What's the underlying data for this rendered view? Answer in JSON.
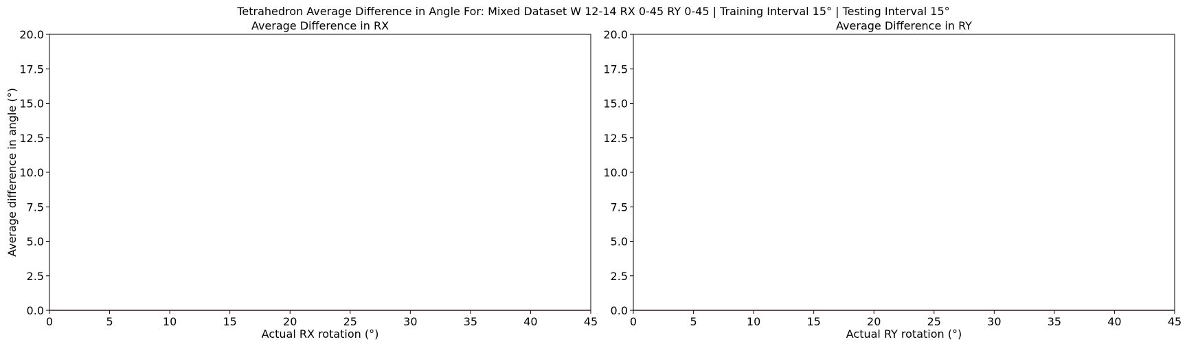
{
  "figure": {
    "suptitle": "Tetrahedron Average Difference in Angle For: Mixed Dataset W 12-14 RX 0-45 RY 0-45 | Training Interval 15° | Testing Interval 15°"
  },
  "chart_data": [
    {
      "type": "line",
      "title": "Average Difference in RX",
      "xlabel": "Actual RX rotation (°)",
      "ylabel": "Average difference in angle (°)",
      "xlim": [
        0,
        45
      ],
      "ylim": [
        0,
        20
      ],
      "xticks": [
        0,
        5,
        10,
        15,
        20,
        25,
        30,
        35,
        40,
        45
      ],
      "yticks": [
        0.0,
        2.5,
        5.0,
        7.5,
        10.0,
        12.5,
        15.0,
        17.5,
        20.0
      ],
      "grid": false,
      "series": [
        {
          "x": [
            0,
            15,
            30,
            45
          ],
          "y": [
            0,
            0,
            0,
            0
          ],
          "color": "#1f77b4"
        },
        {
          "x": [
            0,
            15,
            30,
            45
          ],
          "y": [
            0,
            0,
            0,
            0
          ],
          "color": "#d62728"
        }
      ]
    },
    {
      "type": "line",
      "title": "Average Difference in RY",
      "xlabel": "Actual RY rotation (°)",
      "ylabel": "",
      "xlim": [
        0,
        45
      ],
      "ylim": [
        0,
        20
      ],
      "xticks": [
        0,
        5,
        10,
        15,
        20,
        25,
        30,
        35,
        40,
        45
      ],
      "yticks": [
        0.0,
        2.5,
        5.0,
        7.5,
        10.0,
        12.5,
        15.0,
        17.5,
        20.0
      ],
      "grid": false,
      "series": [
        {
          "x": [
            0,
            15,
            30,
            45
          ],
          "y": [
            0,
            0,
            0,
            0
          ],
          "color": "#1f77b4"
        },
        {
          "x": [
            0,
            15,
            30,
            45
          ],
          "y": [
            0,
            0,
            0,
            0
          ],
          "color": "#d62728"
        }
      ]
    }
  ]
}
